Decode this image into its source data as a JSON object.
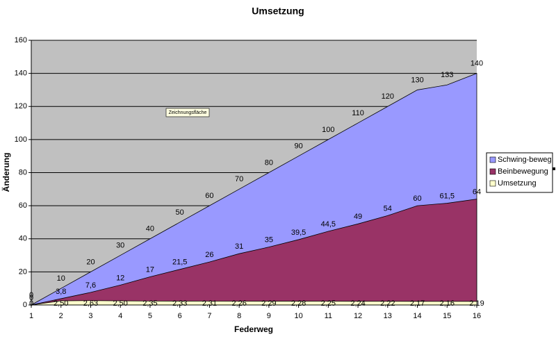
{
  "chart_data": {
    "type": "area",
    "title": "Umsetzung",
    "xlabel": "Federweg",
    "ylabel": "Änderung",
    "annotation": "Zeichnungsfläche",
    "categories": [
      "1",
      "2",
      "3",
      "4",
      "5",
      "6",
      "7",
      "8",
      "9",
      "10",
      "11",
      "12",
      "13",
      "14",
      "15",
      "16"
    ],
    "series": [
      {
        "name": "Schwing-beweg",
        "color": "#9999ff",
        "values": [
          0,
          10,
          20,
          30,
          40,
          50,
          60,
          70,
          80,
          90,
          100,
          110,
          120,
          130,
          133,
          140
        ]
      },
      {
        "name": "Beinbewegung",
        "color": "#993366",
        "values": [
          0,
          3.8,
          7.6,
          12,
          17,
          21.5,
          26,
          31,
          35,
          39.5,
          44.5,
          49,
          54,
          60,
          61.5,
          64
        ],
        "value_labels": [
          "0",
          "3,8",
          "7,6",
          "12",
          "17",
          "21,5",
          "26",
          "31",
          "35",
          "39,5",
          "44,5",
          "49",
          "54",
          "60",
          "61,5",
          "64"
        ]
      },
      {
        "name": "Umsetzung",
        "color": "#ffffcc",
        "values": [
          0,
          2.5,
          2.63,
          2.5,
          2.35,
          2.33,
          2.31,
          2.26,
          2.29,
          2.28,
          2.25,
          2.24,
          2.22,
          2.17,
          2.16,
          2.19
        ],
        "value_labels": [
          "0",
          "2,50",
          "2,63",
          "2,50",
          "2,35",
          "2,33",
          "2,31",
          "2,26",
          "2,29",
          "2,28",
          "2,25",
          "2,24",
          "2,22",
          "2,17",
          "2,16",
          "2,19"
        ]
      }
    ],
    "ylim": [
      0,
      160
    ],
    "yticks": [
      0,
      20,
      40,
      60,
      80,
      100,
      120,
      140,
      160
    ],
    "grid": true,
    "legend": "right"
  }
}
